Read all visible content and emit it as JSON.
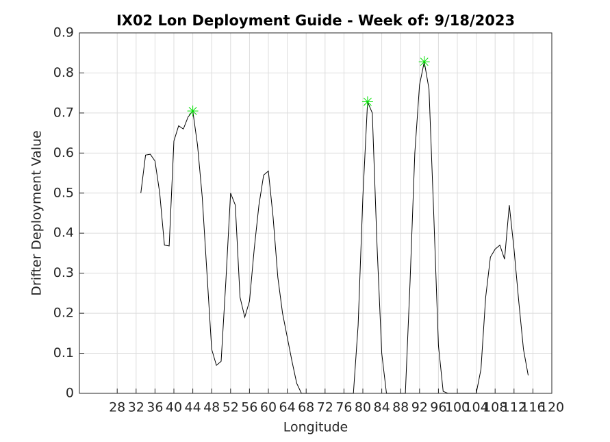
{
  "chart_data": {
    "type": "line",
    "title": "IX02 Lon Deployment Guide - Week of: 9/18/2023",
    "x_label": "Longitude",
    "y_label": "Drifter Deployment Value",
    "x": [
      33,
      34,
      35,
      36,
      37,
      38,
      39,
      40,
      41,
      42,
      43,
      44,
      45,
      46,
      47,
      48,
      49,
      50,
      51,
      52,
      53,
      54,
      55,
      56,
      57,
      58,
      59,
      60,
      61,
      62,
      63,
      64,
      65,
      66,
      67,
      68,
      69,
      70,
      71,
      72,
      73,
      74,
      75,
      76,
      77,
      78,
      79,
      80,
      81,
      82,
      83,
      84,
      85,
      86,
      87,
      88,
      89,
      90,
      91,
      92,
      93,
      94,
      95,
      96,
      97,
      98,
      99,
      100,
      101,
      102,
      103,
      104,
      105,
      106,
      107,
      108,
      109,
      110,
      111,
      112,
      113,
      114,
      115
    ],
    "values": [
      0.5,
      0.595,
      0.597,
      0.58,
      0.5,
      0.37,
      0.368,
      0.63,
      0.668,
      0.66,
      0.69,
      0.705,
      0.62,
      0.49,
      0.3,
      0.11,
      0.07,
      0.08,
      0.28,
      0.5,
      0.47,
      0.24,
      0.19,
      0.23,
      0.36,
      0.47,
      0.545,
      0.555,
      0.44,
      0.29,
      0.2,
      0.14,
      0.08,
      0.025,
      0,
      0,
      0,
      0,
      0,
      0,
      0,
      0,
      0,
      0,
      0,
      0,
      0.17,
      0.49,
      0.728,
      0.7,
      0.37,
      0.1,
      0,
      0,
      0,
      0,
      0,
      0.28,
      0.6,
      0.77,
      0.828,
      0.76,
      0.45,
      0.12,
      0.005,
      0,
      0,
      0,
      0,
      0,
      0,
      0,
      0.06,
      0.24,
      0.34,
      0.36,
      0.37,
      0.335,
      0.47,
      0.36,
      0.23,
      0.11,
      0.045
    ],
    "color": "#000000",
    "highlights": {
      "x": [
        44,
        81,
        93
      ],
      "values": [
        0.705,
        0.728,
        0.828
      ],
      "color": "#00e000"
    },
    "xlim": [
      20,
      120
    ],
    "xticks": [
      28,
      32,
      36,
      40,
      44,
      48,
      52,
      56,
      60,
      64,
      68,
      72,
      76,
      80,
      84,
      88,
      92,
      96,
      100,
      104,
      108,
      112,
      116,
      120
    ],
    "ylim": [
      0,
      0.9
    ],
    "yticks": [
      0,
      0.1,
      0.2,
      0.3,
      0.4,
      0.5,
      0.6,
      0.7,
      0.8,
      0.9
    ],
    "grid": true
  }
}
